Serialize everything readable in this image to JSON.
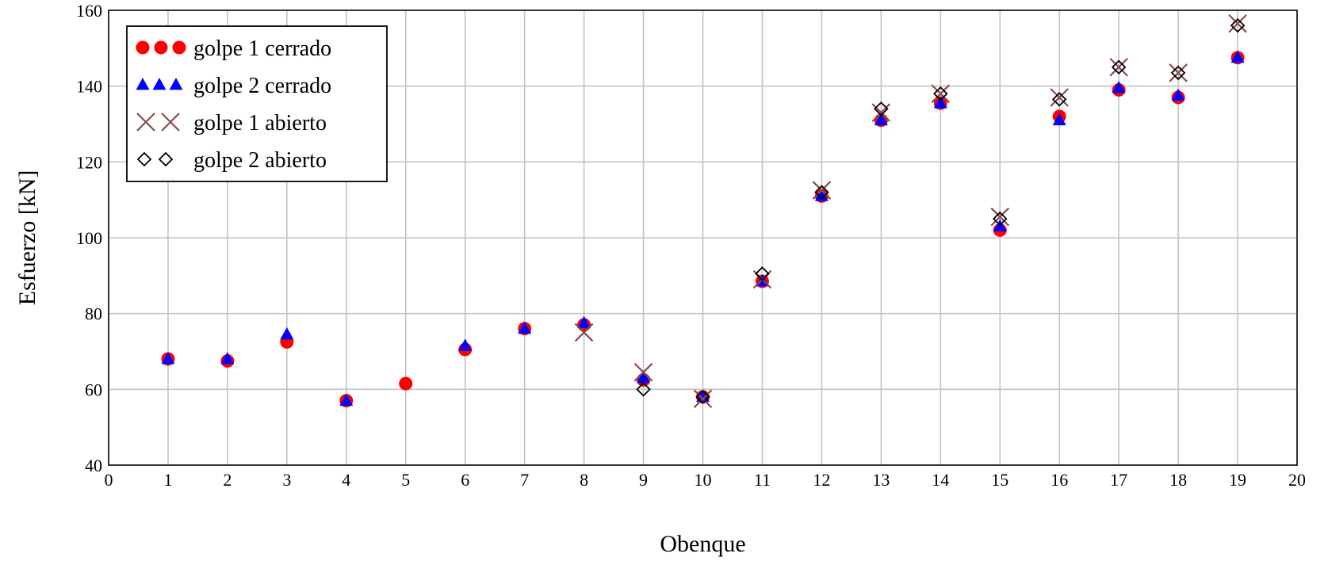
{
  "chart_data": {
    "type": "scatter",
    "xlabel": "Obenque",
    "ylabel": "Esfuerzo [kN]",
    "xlim": [
      0,
      20
    ],
    "ylim": [
      40,
      160
    ],
    "xticks": [
      0,
      1,
      2,
      3,
      4,
      5,
      6,
      7,
      8,
      9,
      10,
      11,
      12,
      13,
      14,
      15,
      16,
      17,
      18,
      19,
      20
    ],
    "yticks": [
      40,
      60,
      80,
      100,
      120,
      140,
      160
    ],
    "grid": true,
    "legend_position": "top-left",
    "series": [
      {
        "name": "golpe 1 cerrado",
        "marker": "circle",
        "color": "#ff0000",
        "points": [
          [
            1,
            68
          ],
          [
            2,
            67.5
          ],
          [
            3,
            72.5
          ],
          [
            4,
            57
          ],
          [
            5,
            61.5
          ],
          [
            6,
            70.5
          ],
          [
            7,
            76
          ],
          [
            8,
            77
          ],
          [
            9,
            62.5
          ],
          [
            10,
            58
          ],
          [
            11,
            88.5
          ],
          [
            12,
            111
          ],
          [
            13,
            131
          ],
          [
            14,
            135.5
          ],
          [
            15,
            102
          ],
          [
            16,
            132
          ],
          [
            17,
            139
          ],
          [
            18,
            137
          ],
          [
            19,
            147.5
          ]
        ]
      },
      {
        "name": "golpe 2 cerrado",
        "marker": "triangle",
        "color": "#0000ff",
        "points": [
          [
            1,
            68
          ],
          [
            2,
            68
          ],
          [
            3,
            74.5
          ],
          [
            4,
            57
          ],
          [
            6,
            71.5
          ],
          [
            7,
            76
          ],
          [
            8,
            77.5
          ],
          [
            9,
            63
          ],
          [
            10,
            58
          ],
          [
            11,
            88.5
          ],
          [
            12,
            111
          ],
          [
            13,
            131
          ],
          [
            14,
            135.5
          ],
          [
            15,
            103
          ],
          [
            16,
            131
          ],
          [
            17,
            139.5
          ],
          [
            18,
            137.5
          ],
          [
            19,
            147.5
          ]
        ]
      },
      {
        "name": "golpe 1 abierto",
        "marker": "x",
        "color": "#8b4a4a",
        "points": [
          [
            8,
            75
          ],
          [
            9,
            64.5
          ],
          [
            10,
            57.5
          ],
          [
            11,
            89
          ],
          [
            12,
            112.5
          ],
          [
            13,
            133
          ],
          [
            14,
            138
          ],
          [
            15,
            105.5
          ],
          [
            16,
            137
          ],
          [
            17,
            145
          ],
          [
            18,
            143.5
          ],
          [
            19,
            156.5
          ]
        ]
      },
      {
        "name": "golpe 2 abierto",
        "marker": "diamond",
        "color": "#000000",
        "points": [
          [
            9,
            60
          ],
          [
            10,
            58
          ],
          [
            11,
            90.5
          ],
          [
            12,
            112
          ],
          [
            13,
            134
          ],
          [
            14,
            138
          ],
          [
            15,
            105
          ],
          [
            16,
            136.5
          ],
          [
            17,
            145
          ],
          [
            18,
            143.5
          ],
          [
            19,
            156
          ]
        ]
      }
    ]
  }
}
